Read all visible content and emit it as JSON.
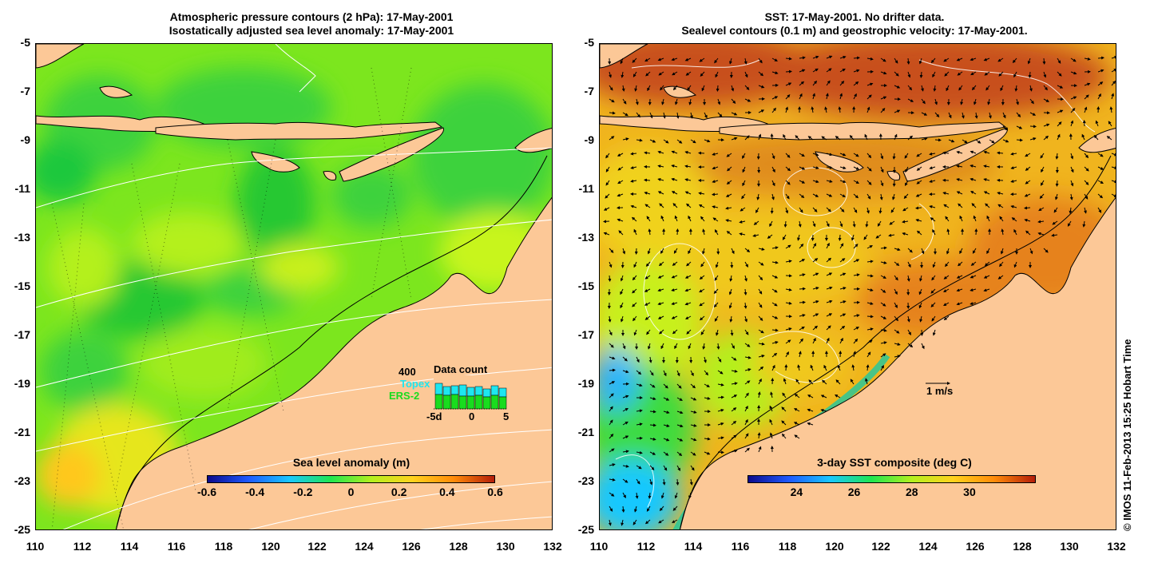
{
  "left_panel": {
    "title_line1": "Atmospheric pressure contours (2 hPa): 17-May-2001",
    "title_line2": "Isostatically adjusted sea level anomaly: 17-May-2001",
    "colorbar": {
      "title": "Sea level anomaly (m)",
      "ticks": [
        "-0.6",
        "-0.4",
        "-0.2",
        "0",
        "0.2",
        "0.4",
        "0.6"
      ],
      "colors": [
        "#0a0a8c",
        "#1e5aff",
        "#19c8ff",
        "#1ee650",
        "#b4f01e",
        "#ffd21e",
        "#ff8c0a",
        "#b41e0a"
      ]
    },
    "inset": {
      "title": "Data count",
      "max_label": "400",
      "series": [
        {
          "name": "Topex",
          "color": "#1ee6f0"
        },
        {
          "name": "ERS-2",
          "color": "#19dc1e"
        }
      ],
      "xticks": [
        "-5d",
        "0",
        "5"
      ]
    }
  },
  "right_panel": {
    "title_line1": "SST: 17-May-2001. No drifter data.",
    "title_line2": "Sealevel contours (0.1 m) and geostrophic velocity: 17-May-2001.",
    "colorbar": {
      "title": "3-day SST composite (deg C)",
      "ticks": [
        "24",
        "26",
        "28",
        "30"
      ],
      "colors": [
        "#0a0a8c",
        "#1e5aff",
        "#19c8ff",
        "#1ee650",
        "#b4f01e",
        "#ffd21e",
        "#ff8c0a",
        "#b41e0a"
      ]
    },
    "scale_label": "1 m/s"
  },
  "axes": {
    "yticks": [
      "-5",
      "-7",
      "-9",
      "-11",
      "-13",
      "-15",
      "-17",
      "-19",
      "-21",
      "-23",
      "-25"
    ],
    "xticks": [
      "110",
      "112",
      "114",
      "116",
      "118",
      "120",
      "122",
      "124",
      "126",
      "128",
      "130",
      "132"
    ]
  },
  "footer": "© IMOS 11-Feb-2013 15:25 Hobart Time",
  "colors": {
    "land": "#fcc897",
    "sla_base": "#7ce61e",
    "sst_base": "#f0b41e"
  }
}
